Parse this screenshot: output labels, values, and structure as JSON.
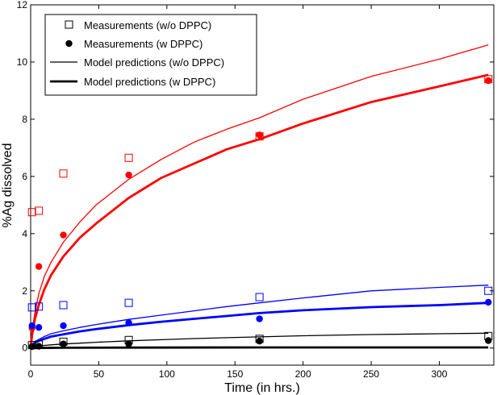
{
  "chart_data": {
    "type": "scatter",
    "xlabel": "Time (in hrs.)",
    "ylabel": "%Ag dissolved",
    "xlim": [
      0,
      340
    ],
    "ylim": [
      -0.6,
      12
    ],
    "xticks": [
      0,
      50,
      100,
      150,
      200,
      250,
      300,
      350
    ],
    "yticks": [
      0,
      2,
      4,
      6,
      8,
      10,
      12
    ],
    "grid": false,
    "legend_position": "top-left",
    "legend": [
      {
        "label": "Measurements (w/o DPPC)",
        "marker": "open-square"
      },
      {
        "label": "Measurements (w DPPC)",
        "marker": "filled-circle"
      },
      {
        "label": "Model predictions (w/o DPPC)",
        "marker": "thin-line"
      },
      {
        "label": "Model predictions (w DPPC)",
        "marker": "thick-line"
      }
    ],
    "series": [
      {
        "color": "#ff0000",
        "kind": "open-square",
        "x": [
          1,
          6,
          24,
          72,
          168,
          336
        ],
        "y": [
          4.75,
          4.8,
          6.1,
          6.65,
          7.4,
          9.4
        ]
      },
      {
        "color": "#ff0000",
        "kind": "filled-circle",
        "x": [
          1,
          6,
          24,
          72,
          168,
          336
        ],
        "y": [
          0.7,
          2.85,
          3.95,
          6.05,
          7.45,
          9.35
        ]
      },
      {
        "color": "#ff0000",
        "kind": "thin-line",
        "x": [
          0,
          1,
          3,
          6,
          10,
          15,
          24,
          36,
          48,
          72,
          96,
          120,
          144,
          168,
          200,
          250,
          300,
          336
        ],
        "y": [
          0,
          0.6,
          1.2,
          1.9,
          2.5,
          3.0,
          3.7,
          4.4,
          5.0,
          5.9,
          6.6,
          7.2,
          7.65,
          8.05,
          8.7,
          9.5,
          10.1,
          10.6
        ]
      },
      {
        "color": "#ff0000",
        "kind": "thick-line",
        "x": [
          0,
          1,
          3,
          6,
          10,
          15,
          24,
          36,
          48,
          72,
          96,
          120,
          144,
          168,
          200,
          250,
          300,
          336
        ],
        "y": [
          0,
          0.45,
          1.0,
          1.5,
          2.05,
          2.55,
          3.2,
          3.85,
          4.35,
          5.25,
          5.95,
          6.45,
          6.95,
          7.3,
          7.85,
          8.6,
          9.15,
          9.55
        ]
      },
      {
        "color": "#0000ff",
        "kind": "open-square",
        "x": [
          1,
          6,
          24,
          72,
          168,
          336
        ],
        "y": [
          1.42,
          1.45,
          1.5,
          1.58,
          1.78,
          2.0
        ]
      },
      {
        "color": "#0000ff",
        "kind": "filled-circle",
        "x": [
          1,
          6,
          24,
          72,
          168,
          336
        ],
        "y": [
          0.78,
          0.72,
          0.78,
          0.88,
          1.02,
          1.6
        ]
      },
      {
        "color": "#0000ff",
        "kind": "thin-line",
        "x": [
          0,
          1,
          3,
          6,
          10,
          15,
          24,
          36,
          48,
          72,
          96,
          120,
          144,
          168,
          200,
          250,
          300,
          336
        ],
        "y": [
          0,
          0.12,
          0.22,
          0.3,
          0.4,
          0.5,
          0.6,
          0.72,
          0.82,
          1.0,
          1.15,
          1.3,
          1.45,
          1.58,
          1.75,
          2.0,
          2.12,
          2.2
        ]
      },
      {
        "color": "#0000ff",
        "kind": "thick-line",
        "x": [
          0,
          1,
          3,
          6,
          10,
          15,
          24,
          36,
          48,
          72,
          96,
          120,
          144,
          168,
          200,
          250,
          300,
          336
        ],
        "y": [
          0,
          0.1,
          0.18,
          0.25,
          0.32,
          0.4,
          0.48,
          0.58,
          0.66,
          0.8,
          0.92,
          1.02,
          1.12,
          1.22,
          1.32,
          1.43,
          1.5,
          1.58
        ]
      },
      {
        "color": "#000000",
        "kind": "open-square",
        "x": [
          1,
          6,
          24,
          72,
          168,
          336
        ],
        "y": [
          0.1,
          0.12,
          0.22,
          0.28,
          0.32,
          0.42
        ]
      },
      {
        "color": "#000000",
        "kind": "filled-circle",
        "x": [
          1,
          6,
          24,
          72,
          168,
          336
        ],
        "y": [
          0.05,
          0.06,
          0.14,
          0.14,
          0.24,
          0.26
        ]
      },
      {
        "color": "#000000",
        "kind": "thin-line",
        "x": [
          0,
          1,
          3,
          6,
          10,
          15,
          24,
          36,
          48,
          72,
          96,
          120,
          144,
          168,
          200,
          250,
          300,
          336
        ],
        "y": [
          0,
          0.03,
          0.05,
          0.07,
          0.09,
          0.11,
          0.14,
          0.17,
          0.2,
          0.25,
          0.29,
          0.33,
          0.36,
          0.39,
          0.43,
          0.47,
          0.5,
          0.52
        ]
      },
      {
        "color": "#000000",
        "kind": "thick-line",
        "x": [
          0,
          24,
          72,
          168,
          336
        ],
        "y": [
          0,
          0.01,
          0.015,
          0.02,
          0.02
        ]
      }
    ]
  }
}
